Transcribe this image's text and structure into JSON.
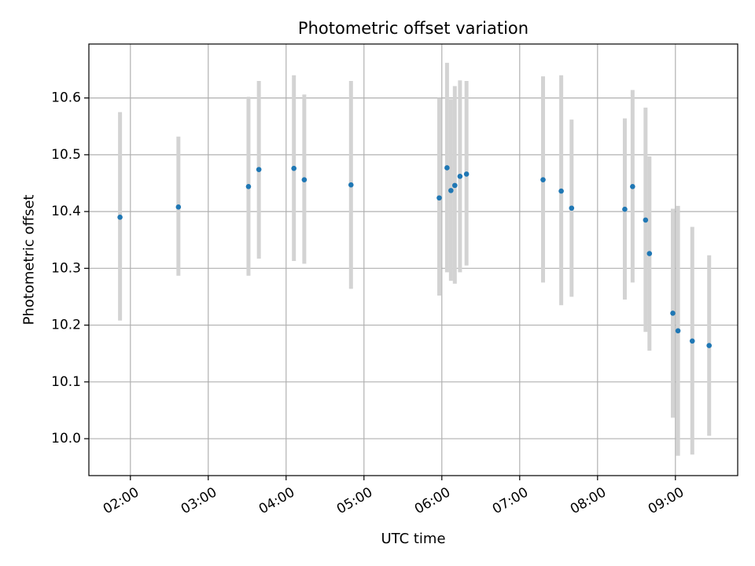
{
  "chart_data": {
    "type": "scatter",
    "title": "Photometric offset variation",
    "xlabel": "UTC time",
    "ylabel": "Photometric offset",
    "x_axis_type": "time",
    "xlim": [
      "01:28",
      "09:48"
    ],
    "ylim": [
      9.935,
      10.695
    ],
    "x_ticks": [
      "02:00",
      "03:00",
      "04:00",
      "05:00",
      "06:00",
      "07:00",
      "08:00",
      "09:00"
    ],
    "y_ticks": [
      10.0,
      10.1,
      10.2,
      10.3,
      10.4,
      10.5,
      10.6
    ],
    "grid": true,
    "legend": "none",
    "colors": {
      "points": "#1f77b4",
      "error_bars": "#d3d3d3",
      "grid": "#b0b0b0"
    },
    "points": [
      {
        "x": "01:52",
        "y": 10.39,
        "err": [
          10.208,
          10.575
        ]
      },
      {
        "x": "02:37",
        "y": 10.408,
        "err": [
          10.287,
          10.532
        ]
      },
      {
        "x": "03:31",
        "y": 10.444,
        "err": [
          10.287,
          10.602
        ]
      },
      {
        "x": "03:39",
        "y": 10.474,
        "err": [
          10.317,
          10.63
        ]
      },
      {
        "x": "04:06",
        "y": 10.476,
        "err": [
          10.313,
          10.64
        ]
      },
      {
        "x": "04:14",
        "y": 10.456,
        "err": [
          10.308,
          10.606
        ]
      },
      {
        "x": "04:50",
        "y": 10.447,
        "err": [
          10.264,
          10.63
        ]
      },
      {
        "x": "05:58",
        "y": 10.424,
        "err": [
          10.252,
          10.6
        ]
      },
      {
        "x": "06:04",
        "y": 10.477,
        "err": [
          10.293,
          10.662
        ]
      },
      {
        "x": "06:07",
        "y": 10.437,
        "err": [
          10.278,
          10.598
        ]
      },
      {
        "x": "06:10",
        "y": 10.446,
        "err": [
          10.273,
          10.621
        ]
      },
      {
        "x": "06:14",
        "y": 10.462,
        "err": [
          10.293,
          10.631
        ]
      },
      {
        "x": "06:19",
        "y": 10.466,
        "err": [
          10.305,
          10.63
        ]
      },
      {
        "x": "07:18",
        "y": 10.456,
        "err": [
          10.275,
          10.638
        ]
      },
      {
        "x": "07:32",
        "y": 10.436,
        "err": [
          10.235,
          10.64
        ]
      },
      {
        "x": "07:40",
        "y": 10.406,
        "err": [
          10.25,
          10.562
        ]
      },
      {
        "x": "08:21",
        "y": 10.404,
        "err": [
          10.245,
          10.564
        ]
      },
      {
        "x": "08:27",
        "y": 10.444,
        "err": [
          10.275,
          10.614
        ]
      },
      {
        "x": "08:37",
        "y": 10.385,
        "err": [
          10.188,
          10.583
        ]
      },
      {
        "x": "08:40",
        "y": 10.326,
        "err": [
          10.155,
          10.497
        ]
      },
      {
        "x": "08:58",
        "y": 10.221,
        "err": [
          10.037,
          10.405
        ]
      },
      {
        "x": "09:02",
        "y": 10.19,
        "err": [
          9.97,
          10.41
        ]
      },
      {
        "x": "09:13",
        "y": 10.172,
        "err": [
          9.972,
          10.373
        ]
      },
      {
        "x": "09:26",
        "y": 10.164,
        "err": [
          10.005,
          10.323
        ]
      }
    ]
  }
}
